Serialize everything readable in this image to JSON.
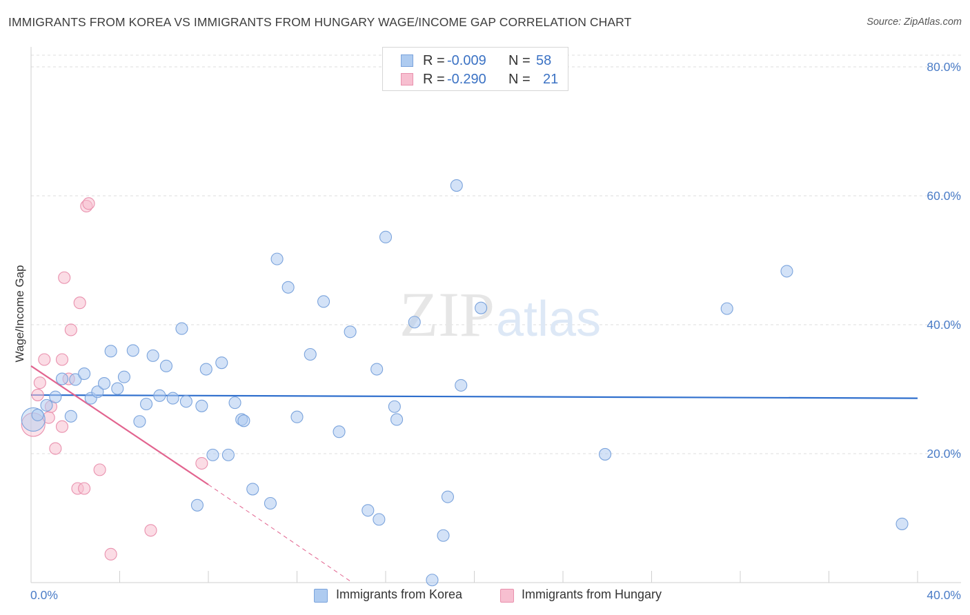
{
  "title": "IMMIGRANTS FROM KOREA VS IMMIGRANTS FROM HUNGARY WAGE/INCOME GAP CORRELATION CHART",
  "source": "Source: ZipAtlas.com",
  "watermark": {
    "zip": "ZIP",
    "atlas": "atlas"
  },
  "legend": {
    "korea": {
      "r_label": "R =",
      "r_value": "-0.009",
      "n_label": "N =",
      "n_value": "58"
    },
    "hungary": {
      "r_label": "R =",
      "r_value": "-0.290",
      "n_label": "N =",
      "n_value": "21"
    }
  },
  "colors": {
    "korea_fill": "#aecbf0",
    "korea_stroke": "#7aa3dc",
    "korea_line": "#2f6fcd",
    "hungary_fill": "#f7bfd0",
    "hungary_stroke": "#e990ad",
    "hungary_line": "#e2648f",
    "tick_text": "#4a7cc7",
    "grid": "#dcdcdc"
  },
  "chart_data": {
    "type": "scatter",
    "title": "IMMIGRANTS FROM KOREA VS IMMIGRANTS FROM HUNGARY WAGE/INCOME GAP CORRELATION CHART",
    "xlabel": "",
    "ylabel": "Wage/Income Gap",
    "xlim": [
      0,
      40
    ],
    "ylim": [
      0,
      80
    ],
    "x_tick_labels": [
      "0.0%",
      "40.0%"
    ],
    "y_ticks": [
      20,
      40,
      60,
      80
    ],
    "y_tick_labels": [
      "20.0%",
      "40.0%",
      "60.0%",
      "80.0%"
    ],
    "legend_position": "bottom",
    "series": [
      {
        "name": "Immigrants from Korea",
        "trend": {
          "x": [
            0,
            40
          ],
          "y": [
            29.1,
            28.6
          ]
        },
        "points": [
          {
            "x": 0.1,
            "y": 25.3,
            "big": true
          },
          {
            "x": 0.3,
            "y": 26.0
          },
          {
            "x": 0.7,
            "y": 27.5
          },
          {
            "x": 1.1,
            "y": 28.8
          },
          {
            "x": 1.4,
            "y": 31.6
          },
          {
            "x": 1.8,
            "y": 25.8
          },
          {
            "x": 2.0,
            "y": 31.5
          },
          {
            "x": 2.4,
            "y": 32.4
          },
          {
            "x": 2.7,
            "y": 28.6
          },
          {
            "x": 3.0,
            "y": 29.6
          },
          {
            "x": 3.3,
            "y": 30.9
          },
          {
            "x": 3.6,
            "y": 35.9
          },
          {
            "x": 3.9,
            "y": 30.1
          },
          {
            "x": 4.2,
            "y": 31.9
          },
          {
            "x": 4.6,
            "y": 36.0
          },
          {
            "x": 4.9,
            "y": 25.0
          },
          {
            "x": 5.2,
            "y": 27.7
          },
          {
            "x": 5.5,
            "y": 35.2
          },
          {
            "x": 5.8,
            "y": 29.0
          },
          {
            "x": 6.1,
            "y": 33.6
          },
          {
            "x": 6.4,
            "y": 28.6
          },
          {
            "x": 6.8,
            "y": 39.4
          },
          {
            "x": 7.0,
            "y": 28.1
          },
          {
            "x": 7.5,
            "y": 12.0
          },
          {
            "x": 7.7,
            "y": 27.4
          },
          {
            "x": 7.9,
            "y": 33.1
          },
          {
            "x": 8.2,
            "y": 19.8
          },
          {
            "x": 8.6,
            "y": 34.1
          },
          {
            "x": 8.9,
            "y": 19.8
          },
          {
            "x": 9.2,
            "y": 27.9
          },
          {
            "x": 9.5,
            "y": 25.3
          },
          {
            "x": 9.6,
            "y": 25.1
          },
          {
            "x": 10.0,
            "y": 14.5
          },
          {
            "x": 10.8,
            "y": 12.3
          },
          {
            "x": 11.1,
            "y": 50.2
          },
          {
            "x": 11.6,
            "y": 45.8
          },
          {
            "x": 12.0,
            "y": 25.7
          },
          {
            "x": 12.6,
            "y": 35.4
          },
          {
            "x": 13.2,
            "y": 43.6
          },
          {
            "x": 13.9,
            "y": 23.4
          },
          {
            "x": 14.4,
            "y": 38.9
          },
          {
            "x": 15.2,
            "y": 11.2
          },
          {
            "x": 15.6,
            "y": 33.1
          },
          {
            "x": 15.7,
            "y": 9.8
          },
          {
            "x": 16.0,
            "y": 53.6
          },
          {
            "x": 16.4,
            "y": 27.3
          },
          {
            "x": 16.5,
            "y": 25.3
          },
          {
            "x": 17.3,
            "y": 40.4
          },
          {
            "x": 18.1,
            "y": 0.4
          },
          {
            "x": 18.6,
            "y": 7.3
          },
          {
            "x": 18.8,
            "y": 13.3
          },
          {
            "x": 19.2,
            "y": 61.6
          },
          {
            "x": 19.4,
            "y": 30.6
          },
          {
            "x": 20.3,
            "y": 42.6
          },
          {
            "x": 25.9,
            "y": 19.9
          },
          {
            "x": 31.4,
            "y": 42.5
          },
          {
            "x": 34.1,
            "y": 48.3
          },
          {
            "x": 39.3,
            "y": 9.1
          }
        ]
      },
      {
        "name": "Immigrants from Hungary",
        "trend": {
          "x": [
            0,
            8
          ],
          "y": [
            33.6,
            15.2
          ],
          "dashed_to": {
            "x": 14.5,
            "y": 0
          }
        },
        "points": [
          {
            "x": 0.1,
            "y": 24.5,
            "big": true
          },
          {
            "x": 0.3,
            "y": 29.1
          },
          {
            "x": 0.4,
            "y": 31.0
          },
          {
            "x": 0.6,
            "y": 34.6
          },
          {
            "x": 0.8,
            "y": 25.6
          },
          {
            "x": 0.9,
            "y": 27.3
          },
          {
            "x": 1.1,
            "y": 20.8
          },
          {
            "x": 1.4,
            "y": 34.6
          },
          {
            "x": 1.4,
            "y": 24.2
          },
          {
            "x": 1.5,
            "y": 47.3
          },
          {
            "x": 1.7,
            "y": 31.6
          },
          {
            "x": 1.8,
            "y": 39.2
          },
          {
            "x": 2.1,
            "y": 14.6
          },
          {
            "x": 2.2,
            "y": 43.4
          },
          {
            "x": 2.4,
            "y": 14.6
          },
          {
            "x": 2.5,
            "y": 58.4
          },
          {
            "x": 2.6,
            "y": 58.8
          },
          {
            "x": 3.1,
            "y": 17.5
          },
          {
            "x": 3.6,
            "y": 4.4
          },
          {
            "x": 5.4,
            "y": 8.1
          },
          {
            "x": 7.7,
            "y": 18.5
          }
        ]
      }
    ]
  },
  "bottom_legend": {
    "korea": "Immigrants from Korea",
    "hungary": "Immigrants from Hungary"
  }
}
